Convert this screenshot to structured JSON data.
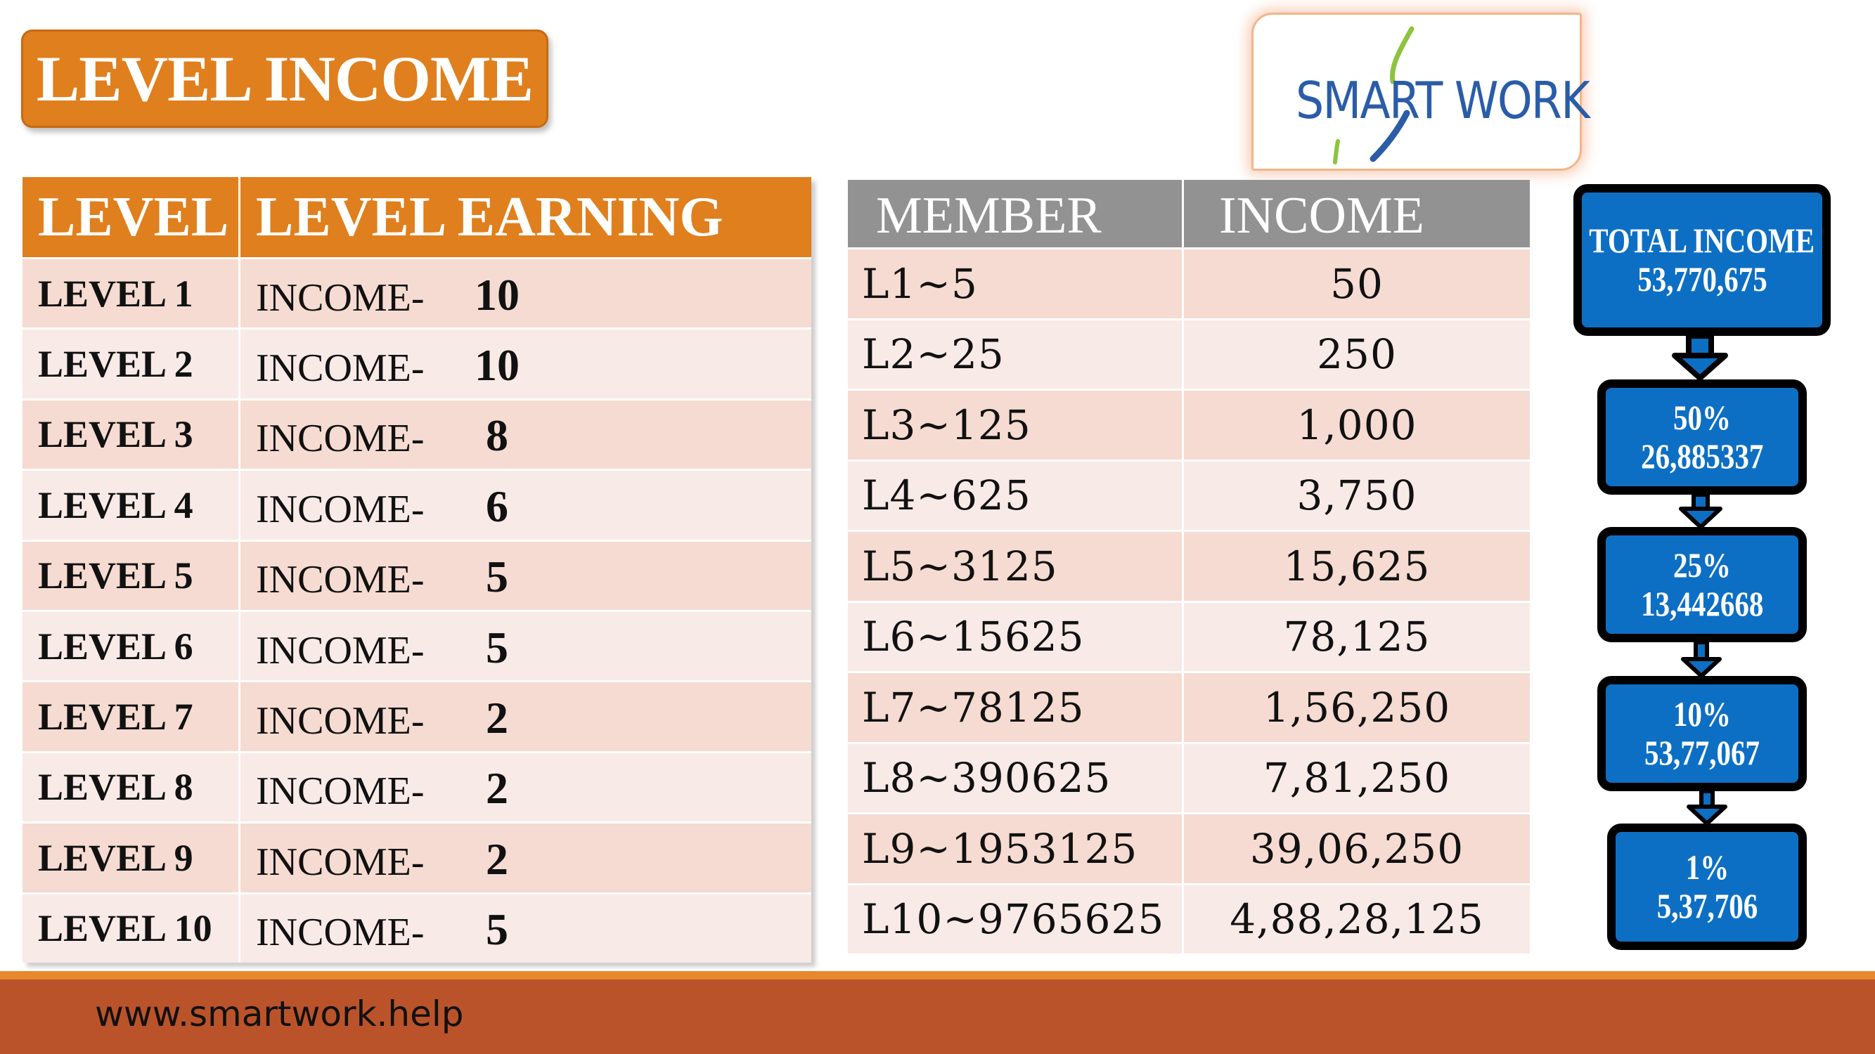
{
  "title": "LEVEL INCOME",
  "logo": {
    "text": "SMART WORK"
  },
  "level_table": {
    "headers": [
      "LEVEL",
      "LEVEL EARNING"
    ],
    "rows": [
      {
        "level": "LEVEL 1",
        "label": "INCOME-",
        "value": "10"
      },
      {
        "level": "LEVEL 2",
        "label": "INCOME-",
        "value": "10"
      },
      {
        "level": "LEVEL 3",
        "label": "INCOME-",
        "value": "8"
      },
      {
        "level": "LEVEL 4",
        "label": "INCOME-",
        "value": "6"
      },
      {
        "level": "LEVEL 5",
        "label": "INCOME-",
        "value": "5"
      },
      {
        "level": "LEVEL 6",
        "label": "INCOME-",
        "value": "5"
      },
      {
        "level": "LEVEL 7",
        "label": "INCOME-",
        "value": "2"
      },
      {
        "level": "LEVEL 8",
        "label": "INCOME-",
        "value": "2"
      },
      {
        "level": "LEVEL 9",
        "label": "INCOME-",
        "value": "2"
      },
      {
        "level": "LEVEL 10",
        "label": "INCOME-",
        "value": "5"
      }
    ]
  },
  "member_table": {
    "headers": [
      "MEMBER",
      "INCOME"
    ],
    "rows": [
      {
        "member": "L1~5",
        "income": "50"
      },
      {
        "member": "L2~25",
        "income": "250"
      },
      {
        "member": "L3~125",
        "income": "1,000"
      },
      {
        "member": "L4~625",
        "income": "3,750"
      },
      {
        "member": "L5~3125",
        "income": "15,625"
      },
      {
        "member": "L6~15625",
        "income": "78,125"
      },
      {
        "member": "L7~78125",
        "income": "1,56,250"
      },
      {
        "member": "L8~390625",
        "income": "7,81,250"
      },
      {
        "member": "L9~1953125",
        "income": "39,06,250"
      },
      {
        "member": "L10~9765625",
        "income": "4,88,28,125"
      }
    ]
  },
  "flow": [
    {
      "line1": "TOTAL INCOME",
      "line2": "53,770,675"
    },
    {
      "line1": "50%",
      "line2": "26,885337"
    },
    {
      "line1": "25%",
      "line2": "13,442668"
    },
    {
      "line1": "10%",
      "line2": "53,77,067"
    },
    {
      "line1": "1%",
      "line2": "5,37,706"
    }
  ],
  "footer": {
    "url": "www.smartwork.help"
  },
  "colors": {
    "orange": "#e07f1d",
    "gray_header": "#929292",
    "row_dark": "#f5dbd1",
    "row_light": "#f8eae6",
    "flow_blue": "#0d6fc4",
    "footer": "#bb532a"
  }
}
